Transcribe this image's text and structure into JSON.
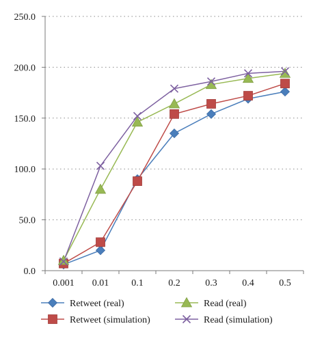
{
  "chart_data": {
    "type": "line",
    "categories": [
      "0.001",
      "0.01",
      "0.1",
      "0.2",
      "0.3",
      "0.4",
      "0.5"
    ],
    "ylim": [
      0,
      250
    ],
    "yticks": [
      "0.0",
      "50.0",
      "100.0",
      "150.0",
      "200.0",
      "250.0"
    ],
    "grid": true,
    "legend_position": "bottom",
    "series": [
      {
        "name": "Retweet (real)",
        "marker": "diamond",
        "color": "#4a7ebb",
        "values": [
          6,
          20,
          90,
          135,
          154,
          169,
          176
        ]
      },
      {
        "name": "Retweet (simulation)",
        "marker": "square",
        "color": "#be4b48",
        "values": [
          7,
          28,
          88,
          154,
          164,
          172,
          184
        ]
      },
      {
        "name": "Read (real)",
        "marker": "triangle",
        "color": "#98b954",
        "values": [
          10,
          80,
          146,
          164,
          183,
          189,
          194
        ]
      },
      {
        "name": "Read (simulation)",
        "marker": "x",
        "color": "#7d60a0",
        "values": [
          9,
          103,
          152,
          179,
          186,
          194,
          196
        ]
      }
    ]
  }
}
